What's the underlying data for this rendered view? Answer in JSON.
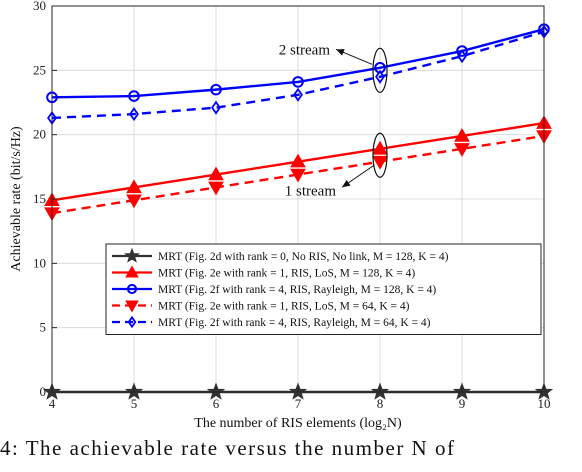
{
  "chart_data": {
    "type": "line",
    "xlabel": "The number of RIS elements (log₂N)",
    "ylabel": "Achievable rate (bit/s/Hz)",
    "xlim": [
      4,
      10
    ],
    "ylim": [
      0,
      30
    ],
    "xticks": [
      4,
      5,
      6,
      7,
      8,
      9,
      10
    ],
    "yticks": [
      0,
      5,
      10,
      15,
      20,
      25,
      30
    ],
    "grid": true,
    "legend_position": "lower-right",
    "x": [
      4,
      5,
      6,
      7,
      8,
      9,
      10
    ],
    "series": [
      {
        "name": "MRT (Fig. 2d with rank = 0, No RIS, No link, M = 128, K = 4)",
        "values": [
          0,
          0,
          0,
          0,
          0,
          0,
          0
        ],
        "color": "#333333",
        "dash": "solid",
        "marker": "star"
      },
      {
        "name": "MRT (Fig. 2e with rank = 1, RIS, LoS, M = 128, K = 4)",
        "values": [
          14.9,
          15.9,
          16.9,
          17.9,
          18.9,
          19.9,
          20.9
        ],
        "color": "#ff0000",
        "dash": "solid",
        "marker": "triangle-up"
      },
      {
        "name": "MRT (Fig. 2f with rank = 4, RIS, Rayleigh, M = 128, K = 4)",
        "values": [
          22.9,
          23.0,
          23.5,
          24.1,
          25.2,
          26.5,
          28.2
        ],
        "color": "#0000ff",
        "dash": "solid",
        "marker": "circle"
      },
      {
        "name": "MRT (Fig. 2e with rank = 1, RIS, LoS, M = 64, K = 4)",
        "values": [
          13.9,
          14.9,
          15.9,
          16.9,
          17.9,
          18.9,
          19.9
        ],
        "color": "#ff0000",
        "dash": "dashed",
        "marker": "triangle-down"
      },
      {
        "name": "MRT (Fig. 2f with rank = 4, RIS, Rayleigh, M = 64, K = 4)",
        "values": [
          21.3,
          21.6,
          22.1,
          23.1,
          24.5,
          26.1,
          28.0
        ],
        "color": "#0000ff",
        "dash": "dashed",
        "marker": "diamond"
      }
    ],
    "annotations": [
      {
        "text": "2 stream",
        "x": 8,
        "y": 25
      },
      {
        "text": "1 stream",
        "x": 8,
        "y": 18.4
      }
    ]
  },
  "caption": "4: The achievable rate versus the number N of"
}
